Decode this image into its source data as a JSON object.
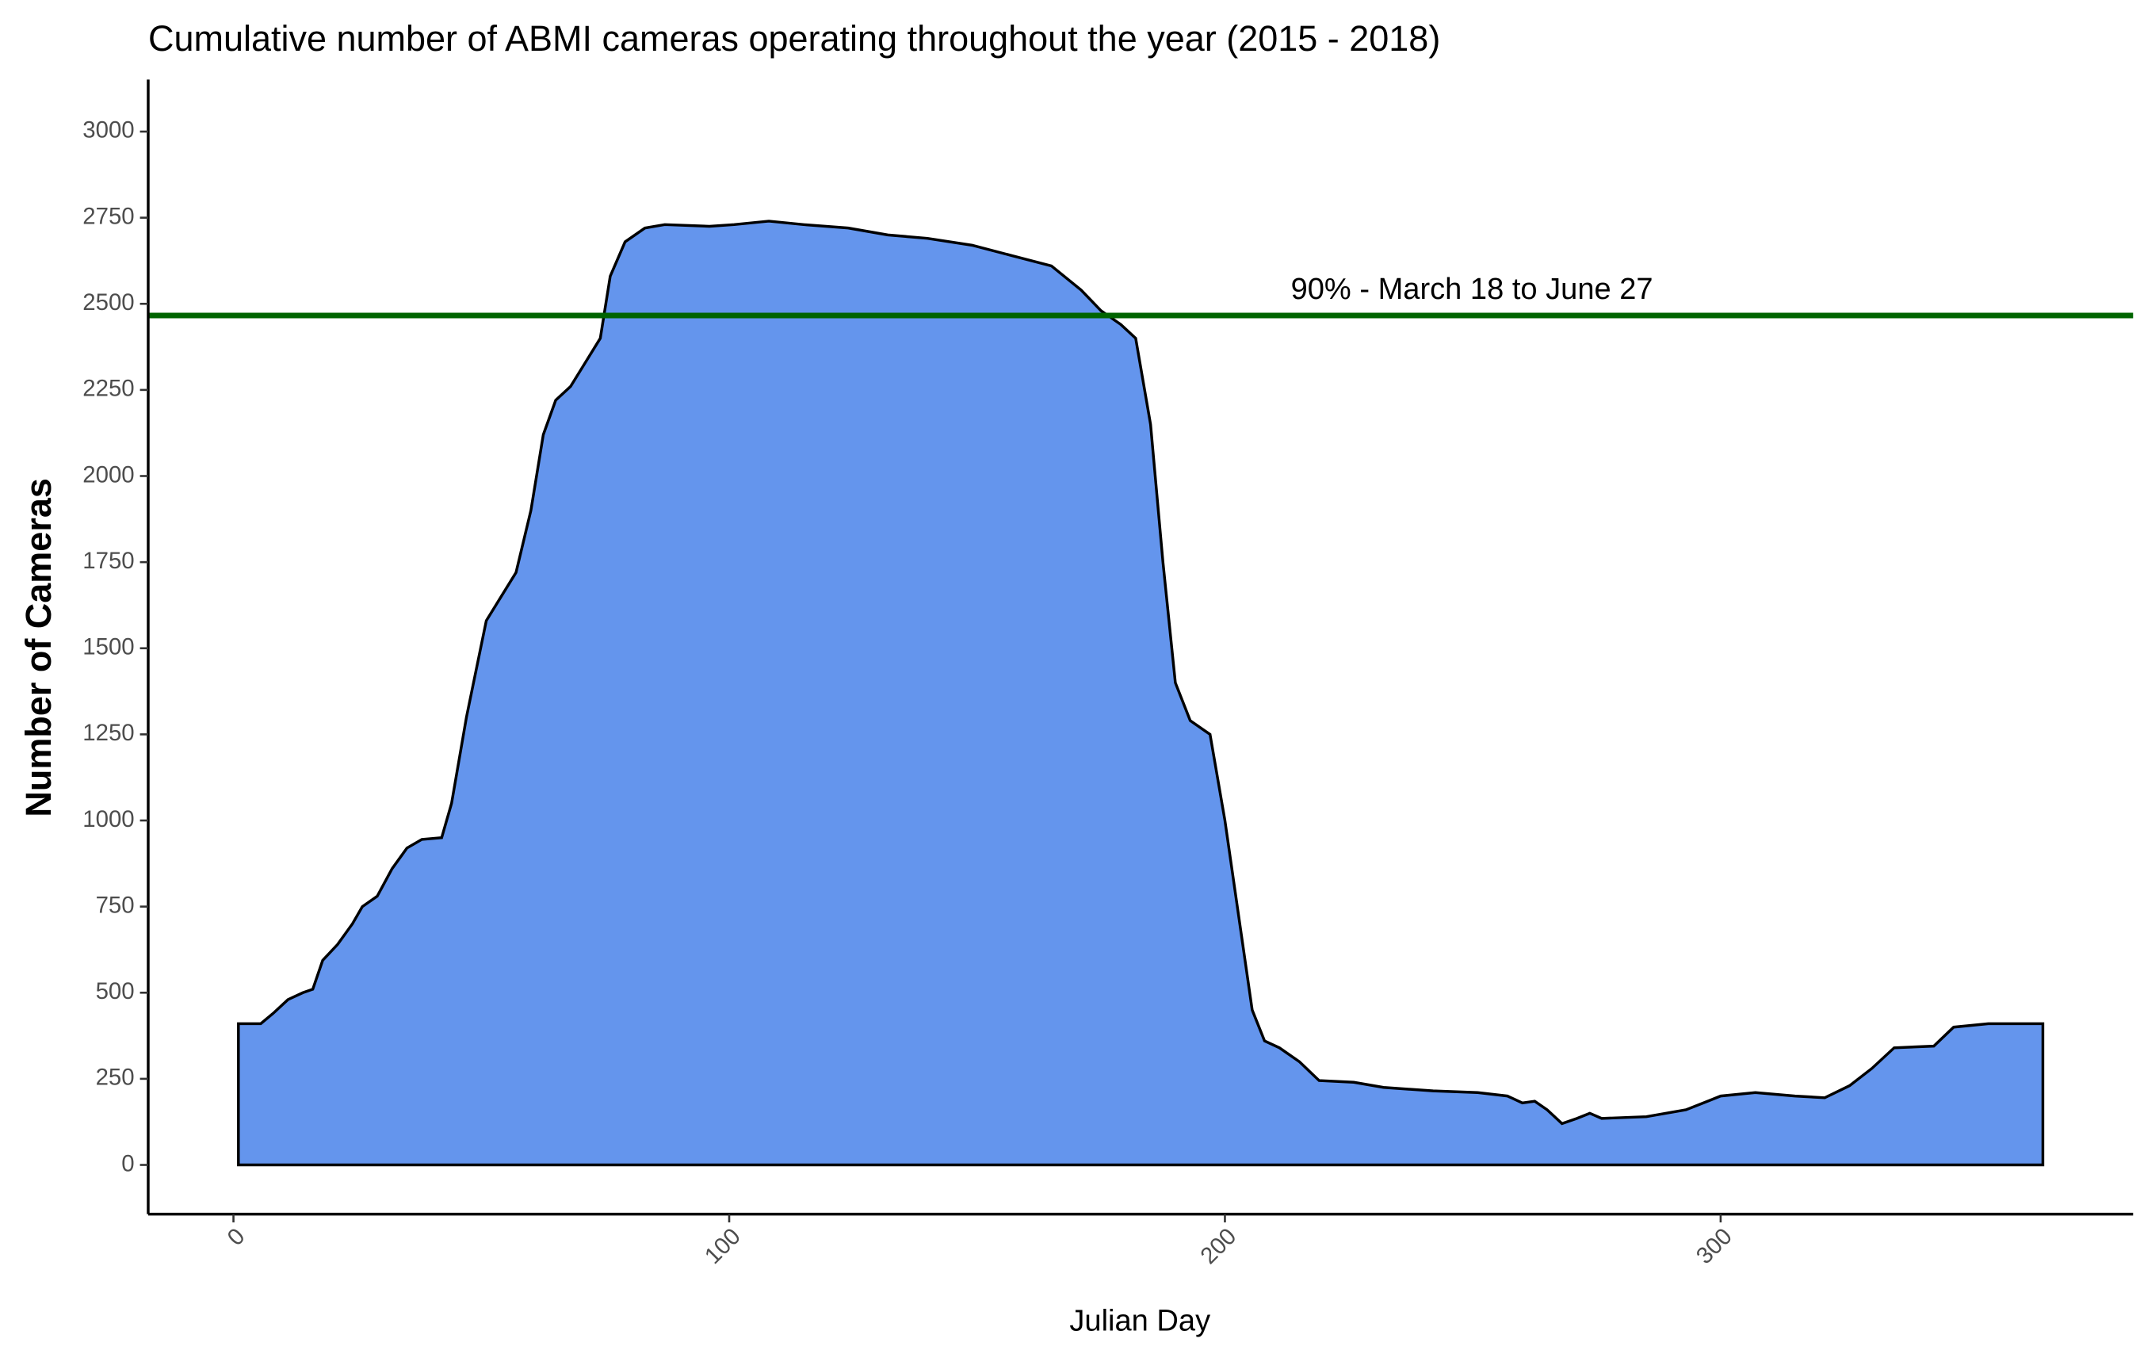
{
  "chart_data": {
    "type": "area",
    "title": "Cumulative number of ABMI cameras operating throughout the year (2015 - 2018)",
    "x_label": "Julian Day",
    "y_label": "Number of Cameras",
    "x": [
      1,
      5.5,
      8,
      11,
      14,
      16,
      18,
      21,
      24,
      26,
      29,
      32,
      35,
      38,
      42,
      44,
      47,
      51,
      54,
      57,
      60,
      62.5,
      65,
      68,
      71,
      74,
      76,
      79,
      83,
      87,
      96,
      101,
      108,
      115,
      124,
      132,
      140,
      149,
      157,
      165,
      171,
      175,
      179,
      182,
      185,
      187.5,
      190,
      193,
      197,
      200,
      203,
      205.5,
      208,
      211,
      215,
      219,
      226,
      232,
      242,
      251,
      257,
      260,
      262.5,
      265,
      268,
      271,
      273.6,
      276,
      285,
      293,
      300,
      307,
      315,
      321,
      326,
      330.5,
      335,
      343,
      347,
      354,
      365
    ],
    "series": [
      {
        "name": "Cameras",
        "color": "#6495ed",
        "values": [
          410,
          410,
          440,
          480,
          500,
          510,
          594,
          640,
          700,
          750,
          780,
          860,
          920,
          945,
          950,
          1050,
          1300,
          1580,
          1650,
          1720,
          1900,
          2120,
          2220,
          2260,
          2330,
          2400,
          2580,
          2680,
          2720,
          2730,
          2725,
          2730,
          2740,
          2730,
          2720,
          2700,
          2690,
          2670,
          2640,
          2610,
          2540,
          2480,
          2440,
          2400,
          2150,
          1750,
          1400,
          1290,
          1250,
          1000,
          700,
          450,
          360,
          340,
          300,
          245,
          240,
          225,
          215,
          210,
          200,
          180,
          185,
          160,
          120,
          135,
          150,
          135,
          140,
          160,
          200,
          210,
          200,
          195,
          230,
          280,
          340,
          345,
          400,
          410,
          410
        ]
      }
    ],
    "hline": {
      "value": 2466,
      "color": "#006400"
    },
    "annotation": "90% - March 18 to June 27",
    "xlim": [
      -17.2,
      383.2
    ],
    "xticks": [
      0,
      100,
      200,
      300
    ],
    "ylim": [
      -143,
      3151
    ],
    "yticks": [
      0,
      250,
      500,
      750,
      1000,
      1250,
      1500,
      1750,
      2000,
      2250,
      2500,
      2750,
      3000
    ]
  }
}
